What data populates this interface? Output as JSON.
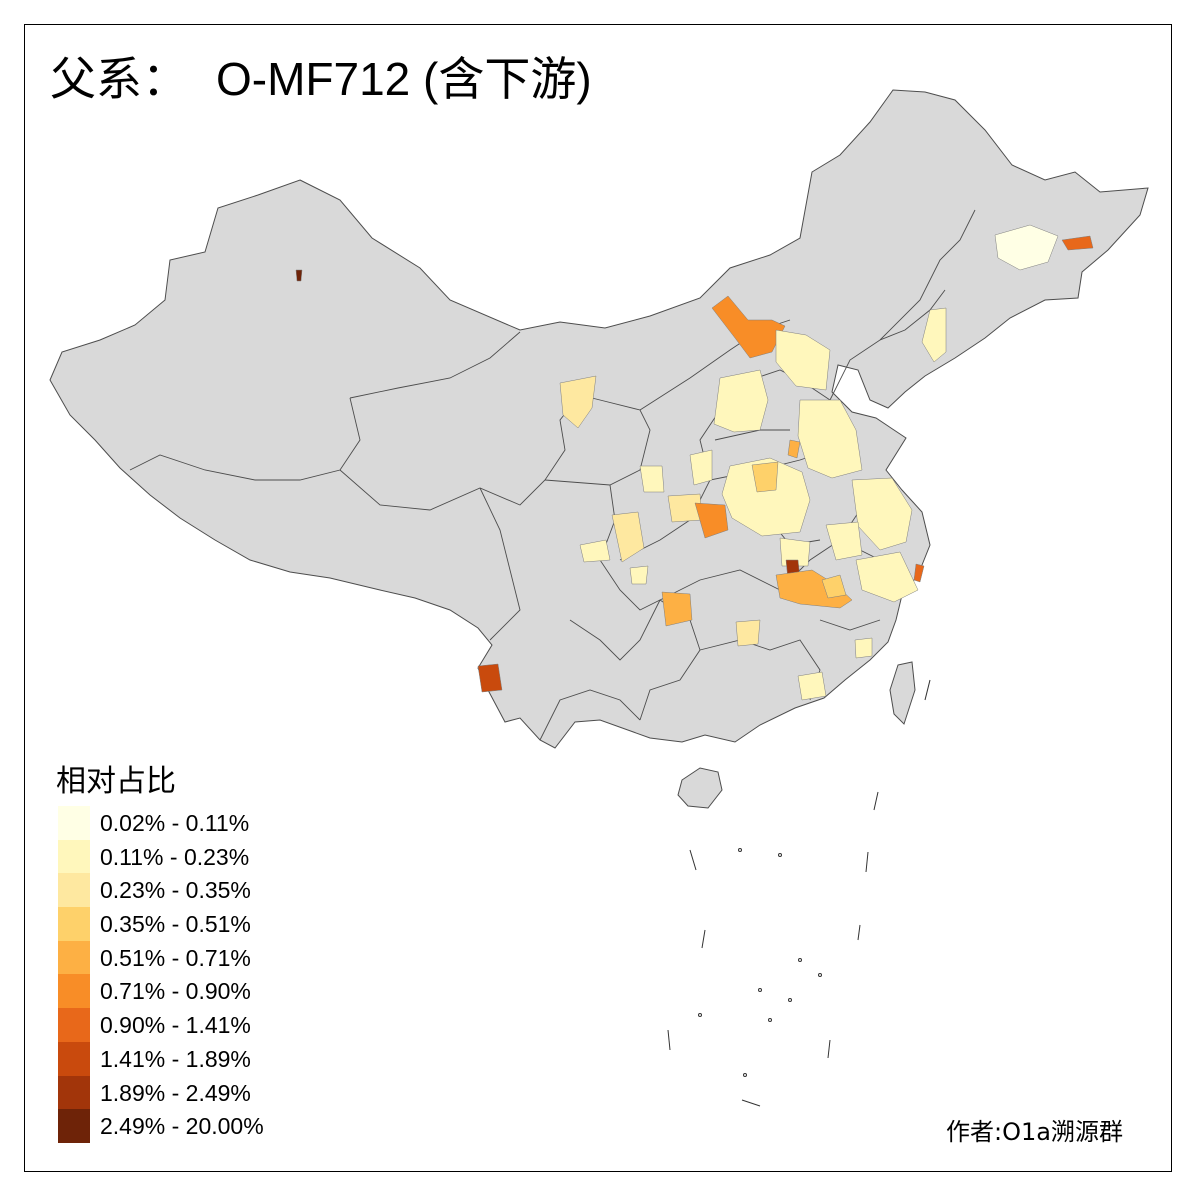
{
  "title": {
    "prefix": "父系：",
    "haplogroup": "O-MF712 (含下游)"
  },
  "legend": {
    "title": "相对占比",
    "items": [
      {
        "label": "0.02% - 0.11%",
        "color": "#FFFFE5"
      },
      {
        "label": "0.11% - 0.23%",
        "color": "#FFF7BC"
      },
      {
        "label": "0.23% - 0.35%",
        "color": "#FEE8A0"
      },
      {
        "label": "0.35% - 0.51%",
        "color": "#FED16A"
      },
      {
        "label": "0.51% - 0.71%",
        "color": "#FDB044"
      },
      {
        "label": "0.71% - 0.90%",
        "color": "#F88D27"
      },
      {
        "label": "0.90% - 1.41%",
        "color": "#E8681A"
      },
      {
        "label": "1.41% - 1.89%",
        "color": "#C94A0D"
      },
      {
        "label": "1.89% - 2.49%",
        "color": "#A2350A"
      },
      {
        "label": "2.49% - 20.00%",
        "color": "#6E2308"
      }
    ]
  },
  "credit": "作者:O1a溯源群",
  "colors": {
    "land": "#D9D9D9",
    "border": "#4D4D4D",
    "background": "#FFFFFF"
  }
}
